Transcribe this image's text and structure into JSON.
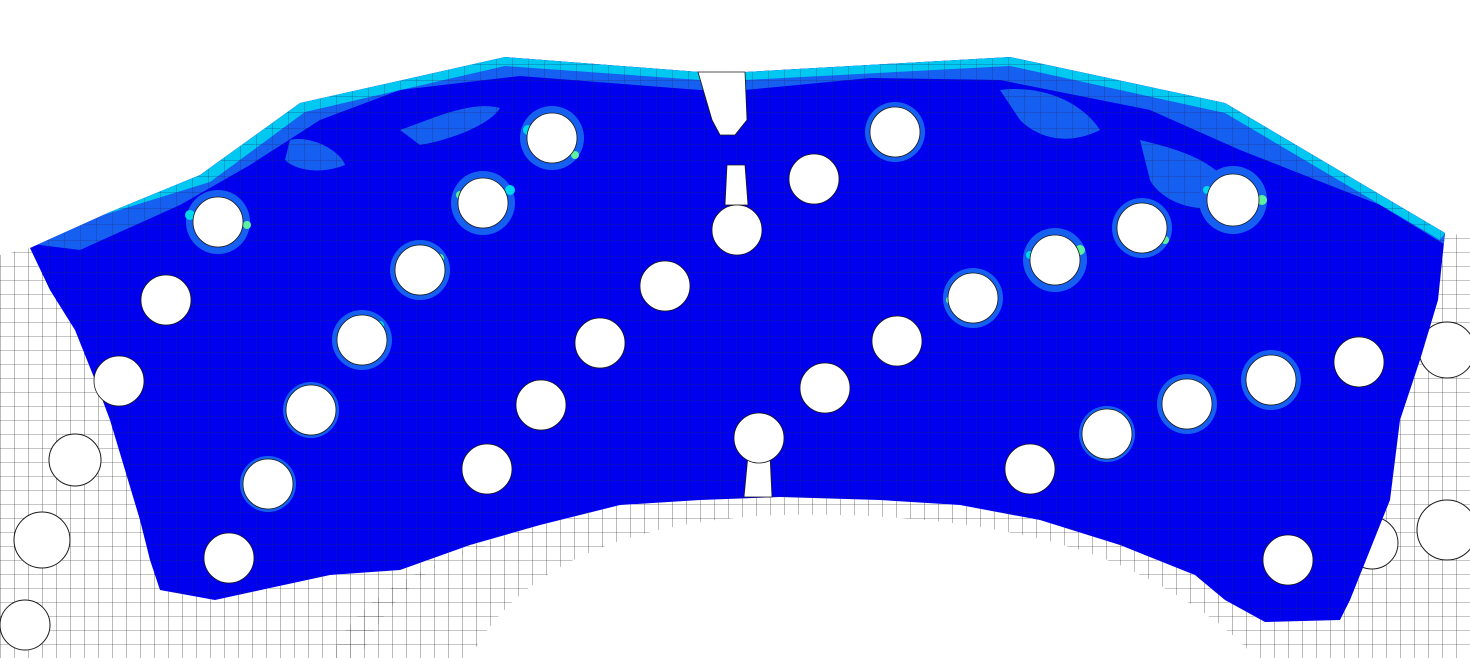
{
  "colors": {
    "background": "#ffffff",
    "mesh_line": "#1a1a1a",
    "contour_low": "#0000ee",
    "contour_mid": "#1560f0",
    "contour_high": "#00d6f0",
    "contour_peak": "#5cf0a0",
    "hole_fill": "#ffffff"
  },
  "model": {
    "description_visible_text": ""
  }
}
